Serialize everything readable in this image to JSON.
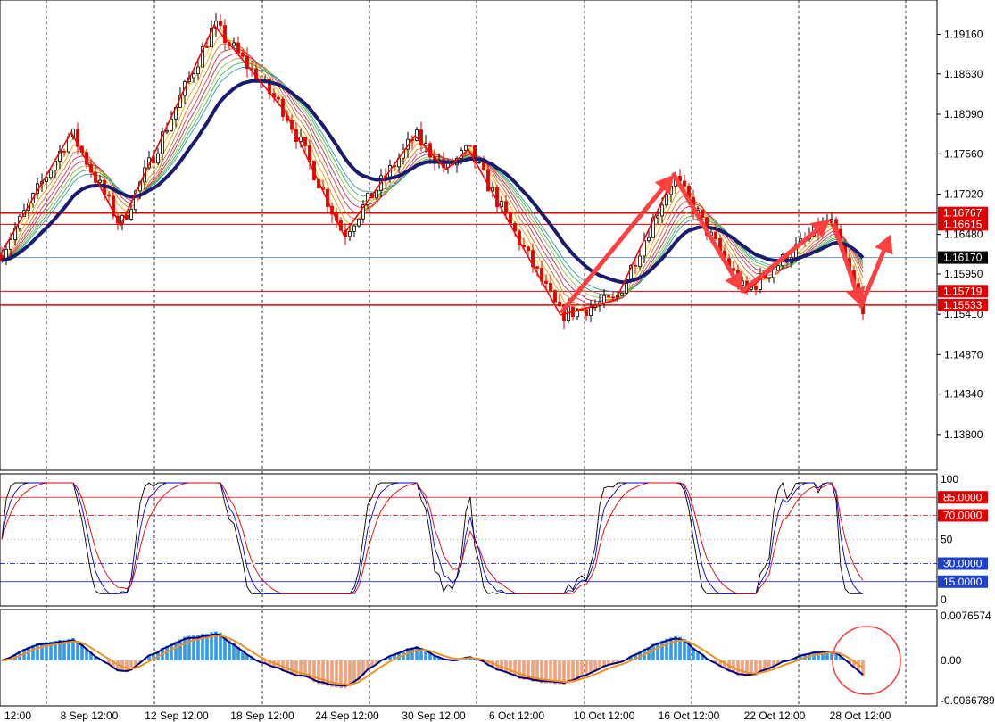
{
  "chart_data": [
    {
      "type": "candlestick",
      "panel": "main",
      "y_ticks": [
        "1.19160",
        "1.18630",
        "1.18090",
        "1.17560",
        "1.17020",
        "1.16480",
        "1.15950",
        "1.15410",
        "1.14870",
        "1.14340",
        "1.13800"
      ],
      "ylim": [
        1.1332,
        1.1962
      ],
      "x_ticks": [
        "12:00",
        "8 Sep 12:00",
        "12 Sep 12:00",
        "18 Sep 12:00",
        "24 Sep 12:00",
        "30 Sep 12:00",
        "6 Oct 12:00",
        "10 Oct 12:00",
        "16 Oct 12:00",
        "22 Oct 12:00",
        "28 Oct 12:00"
      ],
      "price_lines": [
        {
          "value": 1.16767,
          "label": "1.16767",
          "color": "#e00000"
        },
        {
          "value": 1.16615,
          "label": "1.16615",
          "color": "#e00000"
        },
        {
          "value": 1.1617,
          "label": "1.16170",
          "color": "#000000"
        },
        {
          "value": 1.15719,
          "label": "1.15719",
          "color": "#e00000"
        },
        {
          "value": 1.15533,
          "label": "1.15533",
          "color": "#e00000"
        }
      ],
      "zigzag": [
        [
          0,
          1.162
        ],
        [
          80,
          1.1785
        ],
        [
          135,
          1.166
        ],
        [
          240,
          1.1928
        ],
        [
          320,
          1.1812
        ],
        [
          385,
          1.1648
        ],
        [
          465,
          1.178
        ],
        [
          500,
          1.1735
        ],
        [
          525,
          1.1762
        ],
        [
          628,
          1.154
        ],
        [
          690,
          1.156
        ],
        [
          755,
          1.1726
        ],
        [
          835,
          1.157
        ],
        [
          930,
          1.1668
        ],
        [
          965,
          1.1552
        ]
      ],
      "arrows": [
        [
          [
            630,
            1.1545
          ],
          [
            755,
            1.1728
          ]
        ],
        [
          [
            755,
            1.1728
          ],
          [
            832,
            1.1572
          ]
        ],
        [
          [
            832,
            1.1572
          ],
          [
            930,
            1.1668
          ]
        ],
        [
          [
            935,
            1.166
          ],
          [
            965,
            1.1552
          ]
        ],
        [
          [
            965,
            1.1552
          ],
          [
            998,
            1.1648
          ]
        ]
      ],
      "colors": {
        "bull": "#000000",
        "bear": "#e00000",
        "ma_slow": "#1a1a6e",
        "zigzag": "#ff0000",
        "arrow": "#ff4040"
      }
    },
    {
      "type": "line",
      "panel": "stochastic",
      "levels": [
        {
          "value": 85,
          "label": "85.0000",
          "color": "#e00000",
          "style": "solid"
        },
        {
          "value": 70,
          "label": "70.0000",
          "color": "#e00000",
          "style": "dashdot"
        },
        {
          "value": 50,
          "label": "",
          "color": "#808080",
          "style": "dotted"
        },
        {
          "value": 30,
          "label": "30.0000",
          "color": "#0000cc",
          "style": "dashdot"
        },
        {
          "value": 15,
          "label": "15.0000",
          "color": "#0000cc",
          "style": "solid"
        }
      ],
      "y_ticks": [
        "100",
        "50",
        "0"
      ],
      "ylim": [
        0,
        100
      ]
    },
    {
      "type": "bar",
      "panel": "macd",
      "y_ticks": [
        "0.0076574",
        "0.00",
        "-0.0066789"
      ],
      "ylim": [
        -0.0066789,
        0.0076574
      ]
    }
  ]
}
